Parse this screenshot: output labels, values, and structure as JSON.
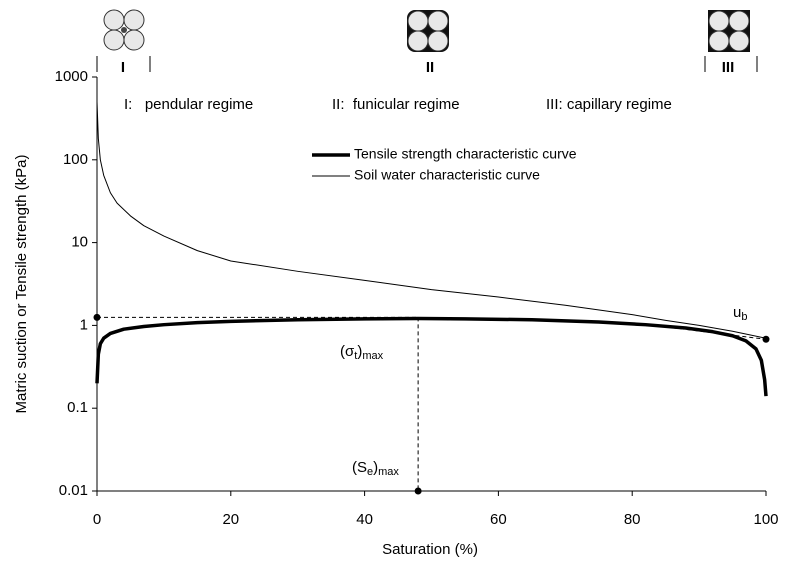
{
  "chart_data": {
    "type": "line",
    "xlabel": "Saturation (%)",
    "ylabel": "Matric suction or Tensile strength (kPa)",
    "xlim": [
      0,
      100
    ],
    "xticks": [
      0,
      20,
      40,
      60,
      80,
      100
    ],
    "ylim": [
      0.01,
      1000
    ],
    "yticks": [
      0.01,
      0.1,
      1,
      10,
      100,
      1000
    ],
    "yscale": "log",
    "grid": false,
    "legend": "upper center",
    "series": [
      {
        "name": "Tensile strength characteristic curve",
        "color": "#000000",
        "linewidth": 3.5,
        "x": [
          0,
          0.2,
          0.5,
          1,
          2,
          4,
          7,
          10,
          15,
          20,
          30,
          40,
          48,
          55,
          65,
          75,
          82,
          88,
          92,
          95,
          97,
          98.5,
          99.3,
          99.8,
          100
        ],
        "values": [
          0.2,
          0.45,
          0.6,
          0.7,
          0.8,
          0.9,
          0.97,
          1.02,
          1.08,
          1.12,
          1.17,
          1.2,
          1.21,
          1.2,
          1.17,
          1.1,
          1.02,
          0.93,
          0.84,
          0.75,
          0.65,
          0.52,
          0.38,
          0.22,
          0.14
        ]
      },
      {
        "name": "Soil water characteristic curve",
        "color": "#000000",
        "linewidth": 1,
        "x": [
          0,
          0.2,
          0.5,
          1,
          2,
          3,
          5,
          7,
          10,
          15,
          20,
          30,
          40,
          50,
          60,
          70,
          80,
          85,
          90,
          95,
          100
        ],
        "values": [
          500,
          180,
          100,
          65,
          40,
          30,
          21,
          16,
          12,
          8,
          6,
          4.5,
          3.5,
          2.7,
          2.2,
          1.75,
          1.35,
          1.15,
          1.0,
          0.85,
          0.7
        ]
      }
    ],
    "dashed_lines": [
      {
        "x": [
          0,
          48
        ],
        "y": [
          1.25,
          1.25
        ]
      },
      {
        "x": [
          48,
          48
        ],
        "y": [
          1.25,
          0.01
        ]
      },
      {
        "x": [
          84,
          100
        ],
        "y": [
          0.98,
          0.68
        ]
      }
    ],
    "points": {
      "x": [
        0,
        48,
        100
      ],
      "y": [
        1.25,
        0.01,
        0.68
      ]
    },
    "regime_text": [
      "I:   pendular regime",
      "II:  funicular regime",
      "III: capillary regime"
    ],
    "regime_labels": [
      "I",
      "II",
      "III"
    ],
    "annotations": {
      "sigma": [
        "(σ",
        "t",
        ")",
        "max"
      ],
      "se": [
        "(S",
        "e",
        ")",
        "max"
      ],
      "ub": [
        "u",
        "b"
      ]
    }
  }
}
